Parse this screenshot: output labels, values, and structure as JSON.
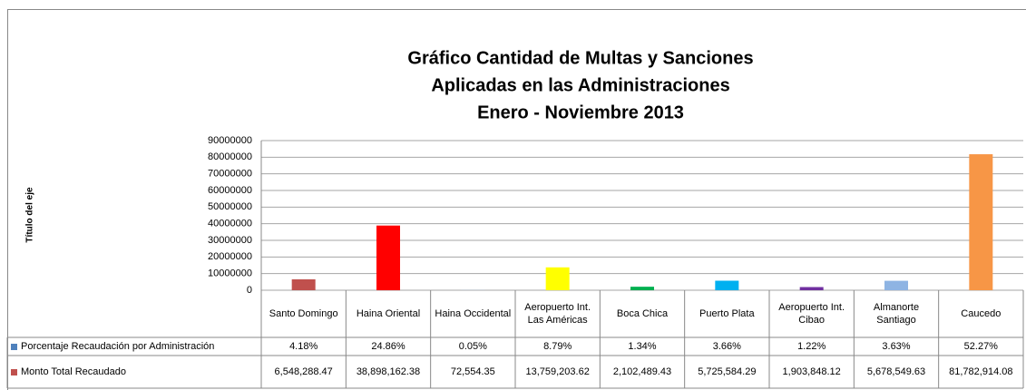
{
  "chart_data": {
    "type": "bar",
    "title": [
      "Gráfico Cantidad de Multas y Sanciones",
      "Aplicadas en las Administraciones",
      "Enero - Noviembre 2013"
    ],
    "y_label": "Título del eje",
    "categories": [
      "Santo Domingo",
      "Haina Oriental",
      "Haina Occidental",
      "Aeropuerto Int. Las Américas",
      "Boca Chica",
      "Puerto Plata",
      "Aeropuerto Int. Cibao",
      "Almanorte Santiago",
      "Caucedo"
    ],
    "series": [
      {
        "name": "Porcentaje Recaudación por Administración",
        "color": "#4f81bd",
        "values": [
          4.18,
          24.86,
          0.05,
          8.79,
          1.34,
          3.66,
          1.22,
          3.63,
          52.27
        ],
        "value_labels": [
          "4.18%",
          "24.86%",
          "0.05%",
          "8.79%",
          "1.34%",
          "3.66%",
          "1.22%",
          "3.63%",
          "52.27%"
        ]
      },
      {
        "name": "Monto Total Recaudado",
        "color": "#c0504d",
        "values": [
          6548288.47,
          38898162.38,
          72554.35,
          13759203.62,
          2102489.43,
          5725584.29,
          1903848.12,
          5678549.63,
          81782914.08
        ],
        "value_labels": [
          "6,548,288.47",
          "38,898,162.38",
          "72,554.35",
          "13,759,203.62",
          "2,102,489.43",
          "5,725,584.29",
          "1,903,848.12",
          "5,678,549.63",
          "81,782,914.08"
        ],
        "point_colors": [
          "#c0504d",
          "#ff0000",
          "#8eb4e3",
          "#ffff00",
          "#00b050",
          "#00b0f0",
          "#7030a0",
          "#8eb4e3",
          "#f79646"
        ]
      }
    ],
    "ylim": [
      0,
      90000000
    ],
    "yticks": [
      0,
      10000000,
      20000000,
      30000000,
      40000000,
      50000000,
      60000000,
      70000000,
      80000000,
      90000000
    ],
    "grid": true
  }
}
